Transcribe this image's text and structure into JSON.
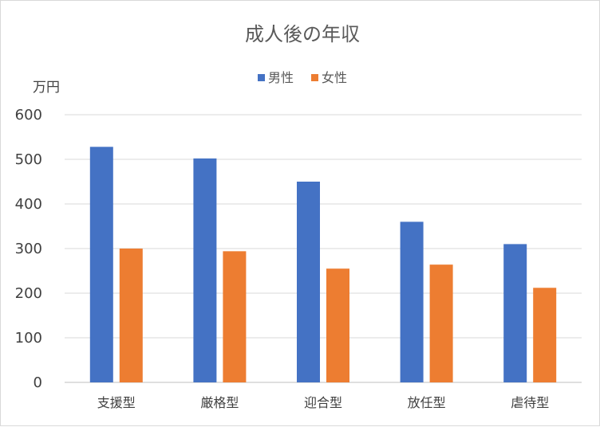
{
  "chart_data": {
    "type": "bar",
    "title": "成人後の年収",
    "unit_label": "万円",
    "categories": [
      "支援型",
      "厳格型",
      "迎合型",
      "放任型",
      "虐待型"
    ],
    "series": [
      {
        "name": "男性",
        "color": "#4472C4",
        "values": [
          528,
          502,
          450,
          360,
          310
        ]
      },
      {
        "name": "女性",
        "color": "#ED7D31",
        "values": [
          300,
          294,
          255,
          264,
          212
        ]
      }
    ],
    "ylim": [
      0,
      600
    ],
    "yticks": [
      0,
      100,
      200,
      300,
      400,
      500,
      600
    ],
    "grid": true,
    "legend_position": "top"
  }
}
